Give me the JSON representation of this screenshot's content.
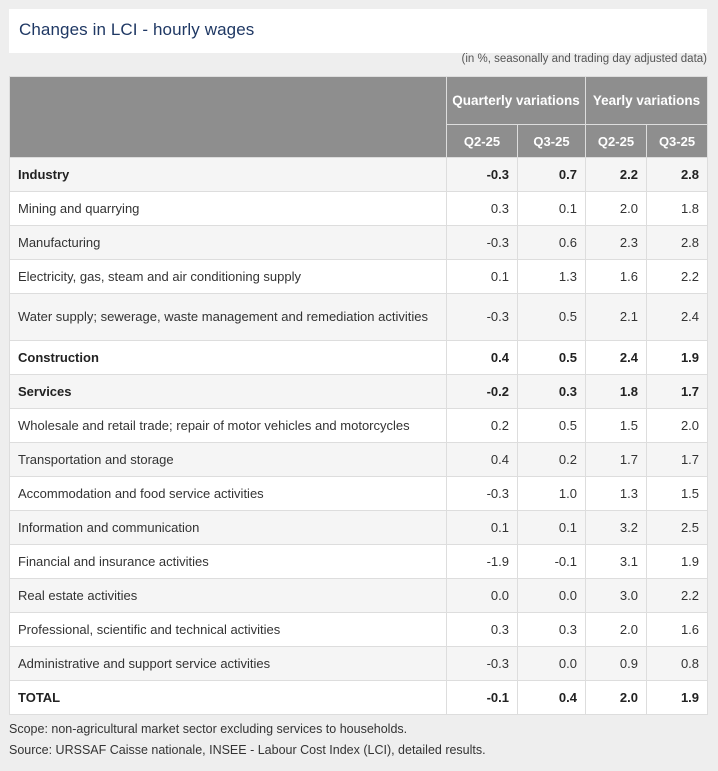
{
  "title": "Changes in LCI - hourly wages",
  "unit_note": "(in %, seasonally and trading day adjusted data)",
  "header": {
    "group_quarterly": "Quarterly variations",
    "group_yearly": "Yearly variations",
    "columns": [
      "Q2-25",
      "Q3-25",
      "Q2-25",
      "Q3-25"
    ]
  },
  "rows": [
    {
      "label": "Industry",
      "values": [
        "-0.3",
        "0.7",
        "2.2",
        "2.8"
      ],
      "bold": true
    },
    {
      "label": "Mining and quarrying",
      "values": [
        "0.3",
        "0.1",
        "2.0",
        "1.8"
      ],
      "bold": false
    },
    {
      "label": "Manufacturing",
      "values": [
        "-0.3",
        "0.6",
        "2.3",
        "2.8"
      ],
      "bold": false
    },
    {
      "label": "Electricity, gas, steam and air conditioning supply",
      "values": [
        "0.1",
        "1.3",
        "1.6",
        "2.2"
      ],
      "bold": false
    },
    {
      "label": "Water supply; sewerage, waste management and remediation activities",
      "values": [
        "-0.3",
        "0.5",
        "2.1",
        "2.4"
      ],
      "bold": false
    },
    {
      "label": "Construction",
      "values": [
        "0.4",
        "0.5",
        "2.4",
        "1.9"
      ],
      "bold": true
    },
    {
      "label": "Services",
      "values": [
        "-0.2",
        "0.3",
        "1.8",
        "1.7"
      ],
      "bold": true
    },
    {
      "label": "Wholesale and retail trade; repair of motor vehicles and motorcycles",
      "values": [
        "0.2",
        "0.5",
        "1.5",
        "2.0"
      ],
      "bold": false
    },
    {
      "label": "Transportation and storage",
      "values": [
        "0.4",
        "0.2",
        "1.7",
        "1.7"
      ],
      "bold": false
    },
    {
      "label": "Accommodation and food service activities",
      "values": [
        "-0.3",
        "1.0",
        "1.3",
        "1.5"
      ],
      "bold": false
    },
    {
      "label": "Information and communication",
      "values": [
        "0.1",
        "0.1",
        "3.2",
        "2.5"
      ],
      "bold": false
    },
    {
      "label": "Financial and insurance activities",
      "values": [
        "-1.9",
        "-0.1",
        "3.1",
        "1.9"
      ],
      "bold": false
    },
    {
      "label": "Real estate activities",
      "values": [
        "0.0",
        "0.0",
        "3.0",
        "2.2"
      ],
      "bold": false
    },
    {
      "label": "Professional, scientific and technical activities",
      "values": [
        "0.3",
        "0.3",
        "2.0",
        "1.6"
      ],
      "bold": false
    },
    {
      "label": "Administrative and support service activities",
      "values": [
        "-0.3",
        "0.0",
        "0.9",
        "0.8"
      ],
      "bold": false
    },
    {
      "label": "TOTAL",
      "values": [
        "-0.1",
        "0.4",
        "2.0",
        "1.9"
      ],
      "bold": true
    }
  ],
  "footnotes": {
    "scope": "Scope: non-agricultural market sector excluding services to households.",
    "source": "Source: URSSAF Caisse nationale, INSEE - Labour Cost Index (LCI), detailed results."
  },
  "chart_data": {
    "type": "table",
    "title": "Changes in LCI - hourly wages",
    "columns": [
      "Quarterly Q2-25",
      "Quarterly Q3-25",
      "Yearly Q2-25",
      "Yearly Q3-25"
    ],
    "categories": [
      "Industry",
      "Mining and quarrying",
      "Manufacturing",
      "Electricity, gas, steam and air conditioning supply",
      "Water supply; sewerage, waste management and remediation activities",
      "Construction",
      "Services",
      "Wholesale and retail trade; repair of motor vehicles and motorcycles",
      "Transportation and storage",
      "Accommodation and food service activities",
      "Information and communication",
      "Financial and insurance activities",
      "Real estate activities",
      "Professional, scientific and technical activities",
      "Administrative and support service activities",
      "TOTAL"
    ]
  }
}
